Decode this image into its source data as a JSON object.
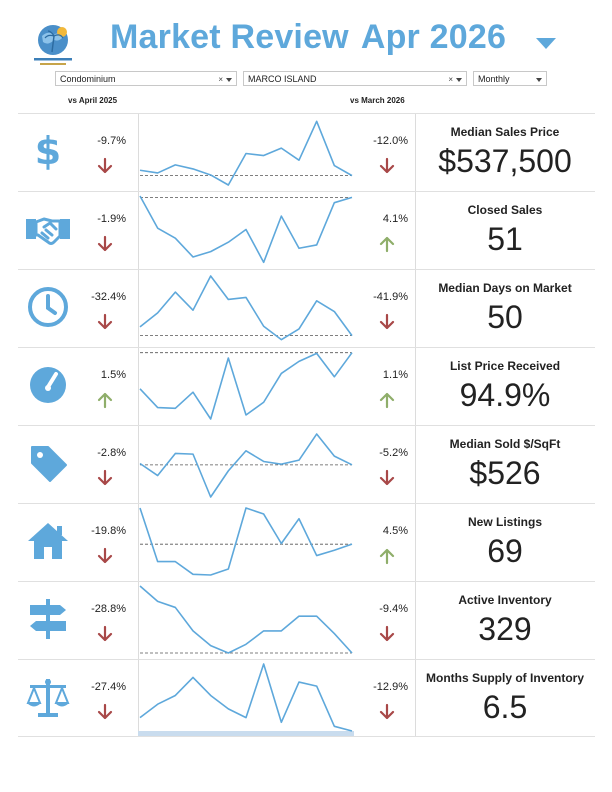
{
  "header": {
    "title": "Market Review",
    "period": "Apr 2026",
    "accent_color": "#5ea8db",
    "logo_icon": "globe-palm-logo-icon"
  },
  "filters": {
    "property_type": "Condominium",
    "area": "MARCO ISLAND",
    "frequency": "Monthly",
    "clear_symbol": "×"
  },
  "columns": {
    "vs_year": "vs April 2025",
    "vs_month": "vs March 2026"
  },
  "colors": {
    "down": "#a84848",
    "up": "#8fae6a",
    "line": "#5ea8db",
    "icon": "#5ea8db"
  },
  "metrics": [
    {
      "name": "Median Sales Price",
      "value": "$537,500",
      "icon": "dollar-icon",
      "vs_year": "-9.7%",
      "year_dir": "down",
      "vs_month": "-12.0%",
      "month_dir": "down",
      "trend": [
        22,
        18,
        30,
        24,
        15,
        0,
        47,
        44,
        55,
        37,
        95,
        29,
        14
      ],
      "baseline": 14,
      "range": [
        0,
        100
      ]
    },
    {
      "name": "Closed Sales",
      "value": "51",
      "icon": "handshake-icon",
      "vs_year": "-1.9%",
      "year_dir": "down",
      "vs_month": "4.1%",
      "month_dir": "up",
      "trend": [
        100,
        52,
        37,
        9,
        17,
        31,
        50,
        1,
        70,
        22,
        27,
        90,
        98
      ],
      "baseline": 98,
      "range": [
        0,
        100
      ]
    },
    {
      "name": "Median Days on Market",
      "value": "50",
      "icon": "clock-icon",
      "vs_year": "-32.4%",
      "year_dir": "down",
      "vs_month": "-41.9%",
      "month_dir": "down",
      "trend": [
        21,
        42,
        73,
        46,
        97,
        62,
        65,
        22,
        2,
        18,
        60,
        44,
        8
      ],
      "baseline": 8,
      "range": [
        0,
        100
      ]
    },
    {
      "name": "List Price Received",
      "value": "94.9%",
      "icon": "gauge-icon",
      "vs_year": "1.5%",
      "year_dir": "up",
      "vs_month": "1.1%",
      "month_dir": "up",
      "trend": [
        45,
        17,
        16,
        40,
        0,
        91,
        6,
        25,
        68,
        86,
        98,
        63,
        99
      ],
      "baseline": 99,
      "range": [
        0,
        100
      ]
    },
    {
      "name": "Median Sold $/SqFt",
      "value": "$526",
      "icon": "price-tag-icon",
      "vs_year": "-2.8%",
      "year_dir": "down",
      "vs_month": "-5.2%",
      "month_dir": "down",
      "trend": [
        50,
        32,
        65,
        64,
        0,
        39,
        69,
        53,
        49,
        55,
        94,
        61,
        48
      ],
      "baseline": 48,
      "range": [
        0,
        100
      ]
    },
    {
      "name": "New Listings",
      "value": "69",
      "icon": "house-icon",
      "vs_year": "-19.8%",
      "year_dir": "down",
      "vs_month": "4.5%",
      "month_dir": "up",
      "trend": [
        100,
        20,
        20,
        1,
        0,
        9,
        100,
        91,
        47,
        84,
        29,
        37,
        46
      ],
      "baseline": 46,
      "range": [
        0,
        100
      ]
    },
    {
      "name": "Active Inventory",
      "value": "329",
      "icon": "signpost-icon",
      "vs_year": "-28.8%",
      "year_dir": "down",
      "vs_month": "-9.4%",
      "month_dir": "down",
      "trend": [
        100,
        77,
        68,
        33,
        11,
        0,
        13,
        33,
        33,
        55,
        55,
        29,
        0
      ],
      "baseline": 0,
      "range": [
        0,
        100
      ]
    },
    {
      "name": "Months Supply of Inventory",
      "value": "6.5",
      "icon": "scales-icon",
      "vs_year": "-27.4%",
      "year_dir": "down",
      "vs_month": "-12.9%",
      "month_dir": "down",
      "trend": [
        20,
        40,
        53,
        80,
        53,
        33,
        20,
        100,
        13,
        73,
        67,
        7,
        0
      ],
      "baseline": null,
      "range": [
        0,
        100
      ]
    }
  ]
}
